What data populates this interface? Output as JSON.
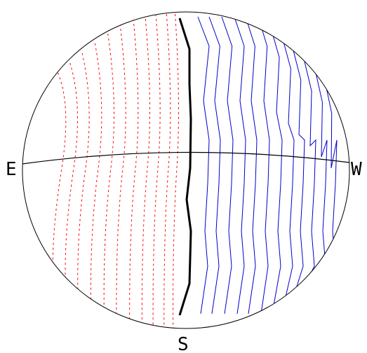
{
  "labels": {
    "east": "E",
    "west": "W",
    "south": "S"
  },
  "colors": {
    "outline": "#000000",
    "central_curve": "#000000",
    "east_curves": "#ff0000",
    "west_curves": "#0000cc",
    "background": "#ffffff"
  },
  "curves": {
    "east_count": 11,
    "east_style": "dashed",
    "central_style": "solid-bold",
    "west_count": 12,
    "west_style": "solid"
  }
}
